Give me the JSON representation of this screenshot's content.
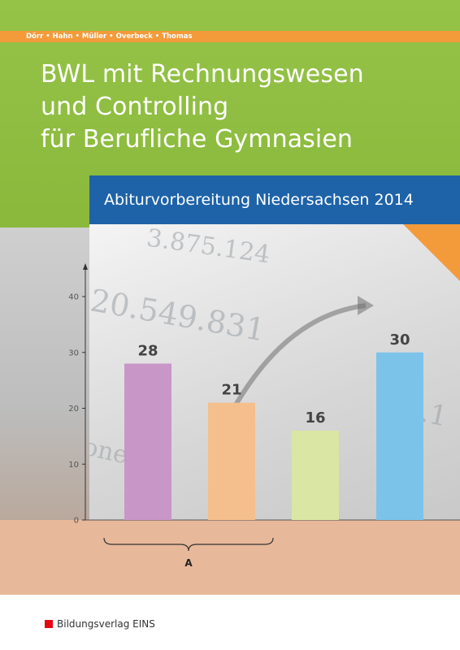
{
  "header": {
    "authors": "Dörr • Hahn • Müller • Overbeck • Thomas"
  },
  "title": {
    "line1": "BWL mit Rechnungswesen",
    "line2": "und Controlling",
    "line3": "für Berufliche Gymnasien"
  },
  "subtitle": "Abiturvorbereitung Niedersachsen 2014",
  "photo_numbers": {
    "n1": "3.875.124",
    "n2": "20.549.831",
    "n3": "31.1",
    "n4": "onen."
  },
  "chart_data": {
    "type": "bar",
    "values": [
      28,
      21,
      16,
      30
    ],
    "data_labels": [
      "28",
      "21",
      "16",
      "30"
    ],
    "colors": [
      "#c996c8",
      "#f4bf8c",
      "#d9e6a4",
      "#7cc3ea"
    ],
    "yticks": [
      "0",
      "10",
      "20",
      "30",
      "40"
    ],
    "ylim": [
      0,
      40
    ],
    "group_label": "A"
  },
  "footer": {
    "publisher": "Bildungsverlag EINS",
    "logo_color": "#e30613"
  },
  "colors": {
    "green": "#8fc03e",
    "orange": "#f39a3a",
    "blue": "#1e63a8",
    "peach": "#e8b89a"
  }
}
